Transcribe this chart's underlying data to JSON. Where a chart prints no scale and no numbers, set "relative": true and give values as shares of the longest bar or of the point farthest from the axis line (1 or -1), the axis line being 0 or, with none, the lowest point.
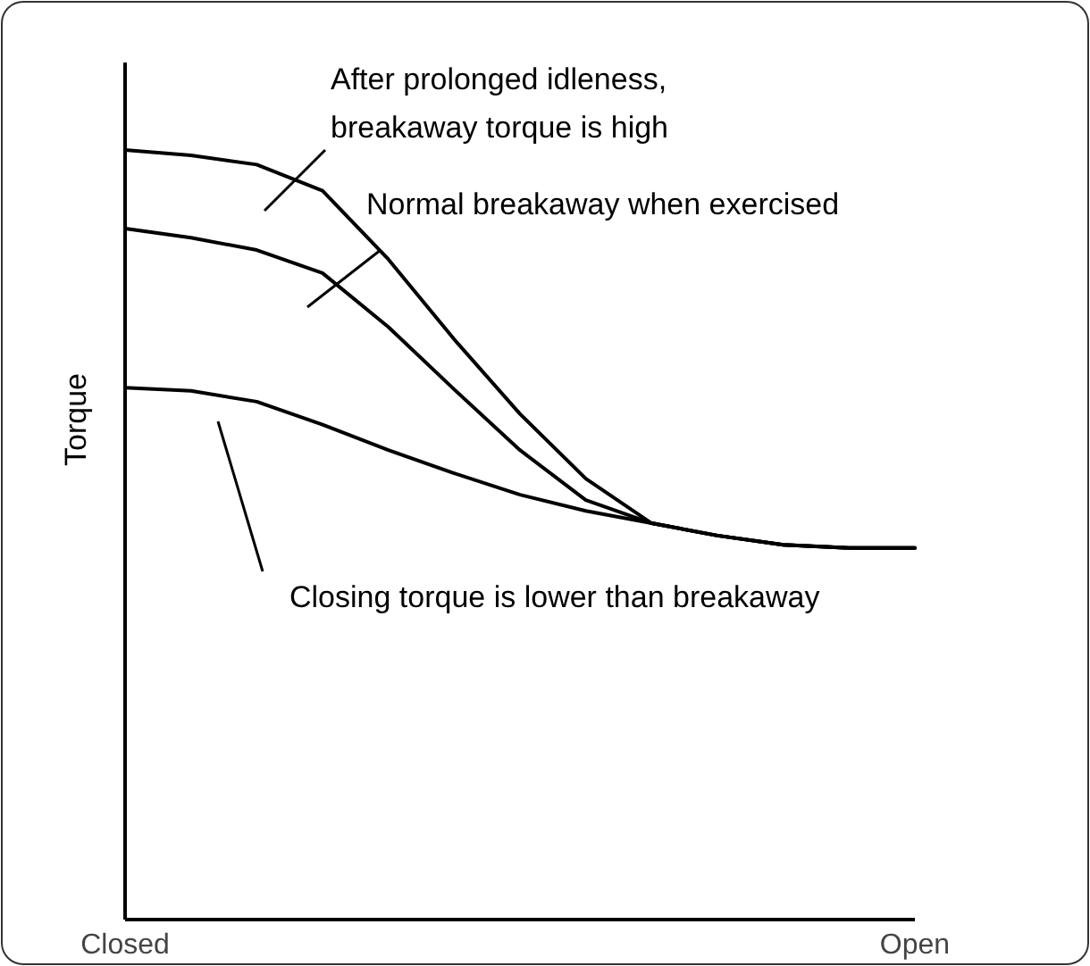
{
  "chart_data": {
    "type": "line",
    "relative": true,
    "ylabel": "Torque",
    "categories": [
      "Closed",
      null,
      null,
      null,
      null,
      null,
      null,
      null,
      null,
      null,
      null,
      null,
      "Open"
    ],
    "series": [
      {
        "color": "#000000",
        "values": [
          1.0,
          0.993,
          0.981,
          0.947,
          0.858,
          0.754,
          0.657,
          0.573,
          0.515,
          0.499,
          0.487,
          0.483,
          0.483
        ]
      },
      {
        "color": "#000000",
        "values": [
          0.898,
          0.886,
          0.87,
          0.84,
          0.77,
          0.689,
          0.61,
          0.545,
          0.515,
          0.499,
          0.487,
          0.483,
          0.483
        ]
      },
      {
        "color": "#000000",
        "values": [
          0.691,
          0.687,
          0.673,
          0.643,
          0.61,
          0.58,
          0.552,
          0.531,
          0.515,
          0.499,
          0.487,
          0.483,
          0.483
        ]
      }
    ],
    "annotations": [
      "After prolonged idleness,\nbreakaway torque is high",
      "Normal breakaway when exercised",
      "Closing torque is lower than breakaway"
    ],
    "marker": "none",
    "line_style": "solid"
  }
}
